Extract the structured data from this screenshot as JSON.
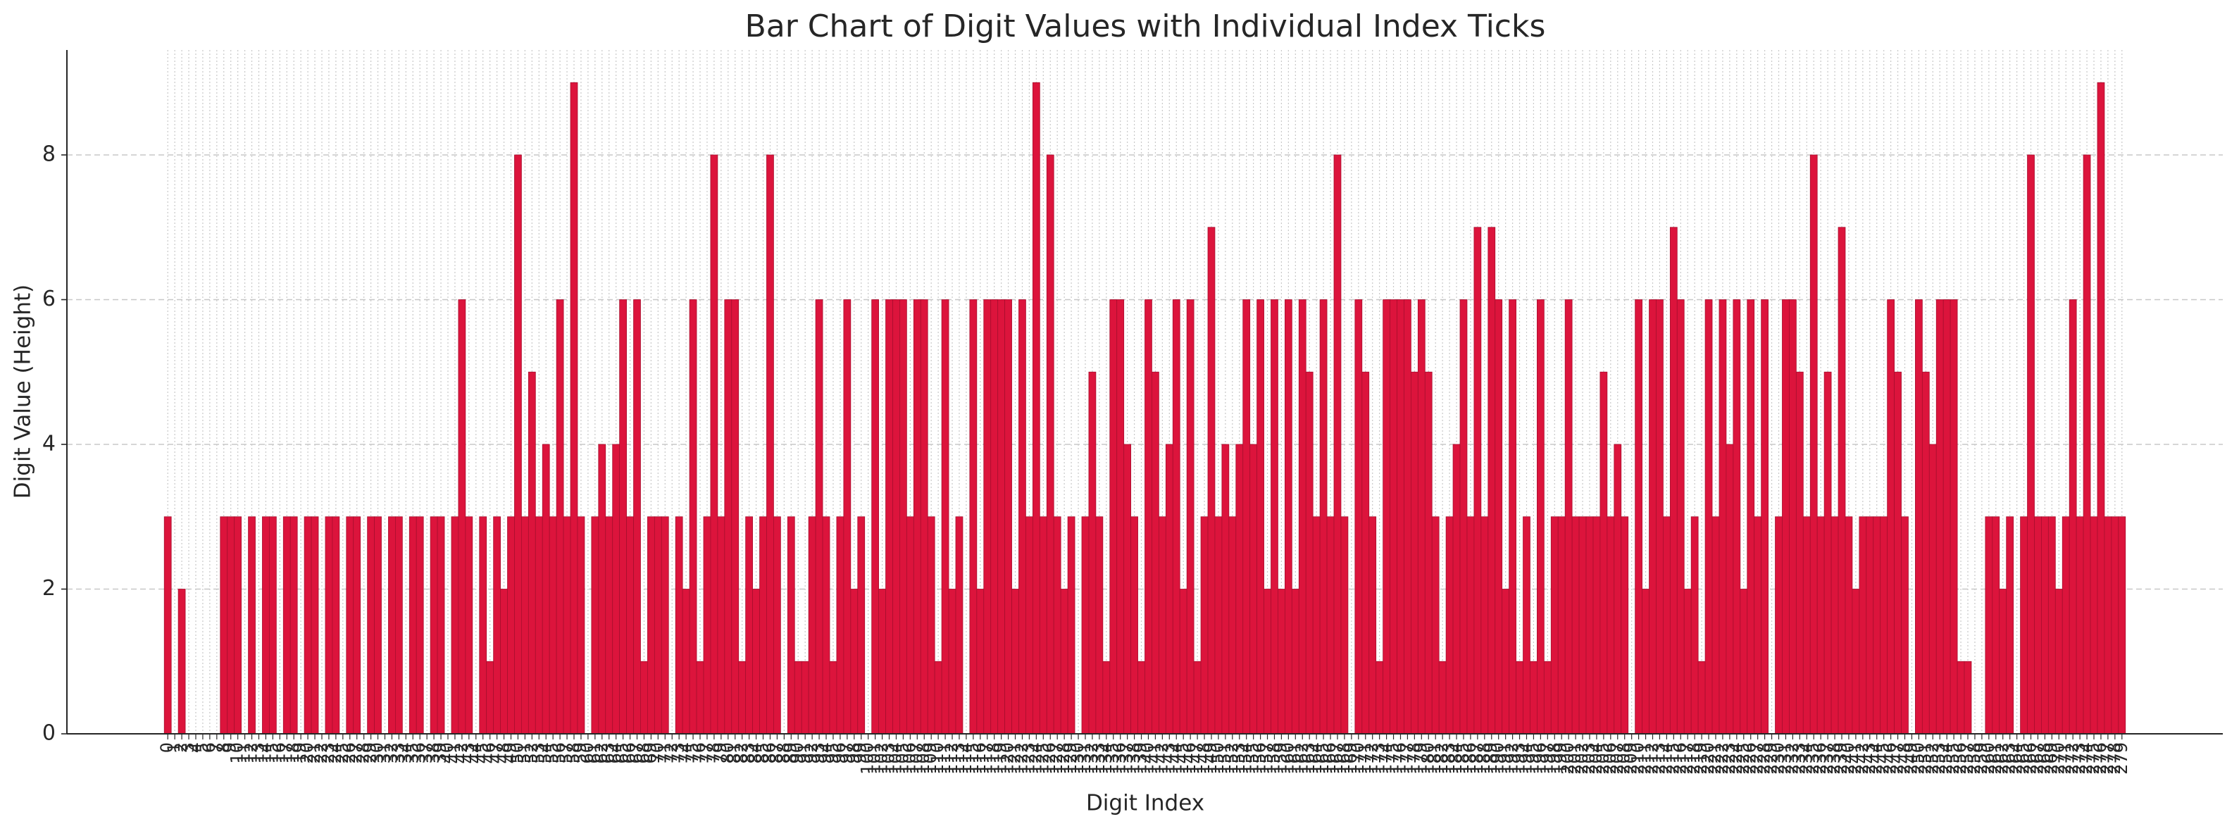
{
  "chart_data": {
    "type": "bar",
    "title": "Bar Chart of Digit Values with Individual Index Ticks",
    "xlabel": "Digit Index",
    "ylabel": "Digit Value (Height)",
    "color": "#dc143c",
    "grid": true,
    "xlim": [
      -14.4,
      293.4
    ],
    "ylim": [
      0,
      9.45
    ],
    "yticks": [
      0,
      2,
      4,
      6,
      8
    ],
    "x": [
      0,
      1,
      2,
      3,
      4,
      5,
      6,
      7,
      8,
      9,
      10,
      11,
      12,
      13,
      14,
      15,
      16,
      17,
      18,
      19,
      20,
      21,
      22,
      23,
      24,
      25,
      26,
      27,
      28,
      29,
      30,
      31,
      32,
      33,
      34,
      35,
      36,
      37,
      38,
      39,
      40,
      41,
      42,
      43,
      44,
      45,
      46,
      47,
      48,
      49,
      50,
      51,
      52,
      53,
      54,
      55,
      56,
      57,
      58,
      59,
      60,
      61,
      62,
      63,
      64,
      65,
      66,
      67,
      68,
      69,
      70,
      71,
      72,
      73,
      74,
      75,
      76,
      77,
      78,
      79,
      80,
      81,
      82,
      83,
      84,
      85,
      86,
      87,
      88,
      89,
      90,
      91,
      92,
      93,
      94,
      95,
      96,
      97,
      98,
      99,
      100,
      101,
      102,
      103,
      104,
      105,
      106,
      107,
      108,
      109,
      110,
      111,
      112,
      113,
      114,
      115,
      116,
      117,
      118,
      119,
      120,
      121,
      122,
      123,
      124,
      125,
      126,
      127,
      128,
      129,
      130,
      131,
      132,
      133,
      134,
      135,
      136,
      137,
      138,
      139,
      140,
      141,
      142,
      143,
      144,
      145,
      146,
      147,
      148,
      149,
      150,
      151,
      152,
      153,
      154,
      155,
      156,
      157,
      158,
      159,
      160,
      161,
      162,
      163,
      164,
      165,
      166,
      167,
      168,
      169,
      170,
      171,
      172,
      173,
      174,
      175,
      176,
      177,
      178,
      179,
      180,
      181,
      182,
      183,
      184,
      185,
      186,
      187,
      188,
      189,
      190,
      191,
      192,
      193,
      194,
      195,
      196,
      197,
      198,
      199,
      200,
      201,
      202,
      203,
      204,
      205,
      206,
      207,
      208,
      209,
      210,
      211,
      212,
      213,
      214,
      215,
      216,
      217,
      218,
      219,
      220,
      221,
      222,
      223,
      224,
      225,
      226,
      227,
      228,
      229,
      230,
      231,
      232,
      233,
      234,
      235,
      236,
      237,
      238,
      239,
      240,
      241,
      242,
      243,
      244,
      245,
      246,
      247,
      248,
      249,
      250,
      251,
      252,
      253,
      254,
      255,
      256,
      257,
      258,
      259,
      260,
      261,
      262,
      263,
      264,
      265,
      266,
      267,
      268,
      269,
      270,
      271,
      272,
      273,
      274,
      275,
      276,
      277,
      278,
      279
    ],
    "xticks": [
      0,
      1,
      2,
      3,
      4,
      5,
      6,
      7,
      8,
      9,
      10,
      11,
      12,
      13,
      14,
      15,
      16,
      17,
      18,
      19,
      20,
      21,
      22,
      23,
      24,
      25,
      26,
      27,
      28,
      29,
      30,
      31,
      32,
      33,
      34,
      35,
      36,
      37,
      38,
      39,
      40,
      41,
      42,
      43,
      44,
      45,
      46,
      47,
      48,
      49,
      50,
      51,
      52,
      53,
      54,
      55,
      56,
      57,
      58,
      59,
      60,
      61,
      62,
      63,
      64,
      65,
      66,
      67,
      68,
      69,
      70,
      71,
      72,
      73,
      74,
      75,
      76,
      77,
      78,
      79,
      80,
      81,
      82,
      83,
      84,
      85,
      86,
      87,
      88,
      89,
      90,
      91,
      92,
      93,
      94,
      95,
      96,
      97,
      98,
      99,
      100,
      101,
      102,
      103,
      104,
      105,
      106,
      107,
      108,
      109,
      110,
      111,
      112,
      113,
      114,
      115,
      116,
      117,
      118,
      119,
      120,
      121,
      122,
      123,
      124,
      125,
      126,
      127,
      128,
      129,
      130,
      131,
      132,
      133,
      134,
      135,
      136,
      137,
      138,
      139,
      140,
      141,
      142,
      143,
      144,
      145,
      146,
      147,
      148,
      149,
      150,
      151,
      152,
      153,
      154,
      155,
      156,
      157,
      158,
      159,
      160,
      161,
      162,
      163,
      164,
      165,
      166,
      167,
      168,
      169,
      170,
      171,
      172,
      173,
      174,
      175,
      176,
      177,
      178,
      179,
      180,
      181,
      182,
      183,
      184,
      185,
      186,
      187,
      188,
      189,
      190,
      191,
      192,
      193,
      194,
      195,
      196,
      197,
      198,
      199,
      200,
      201,
      202,
      203,
      204,
      205,
      206,
      207,
      208,
      209,
      210,
      211,
      212,
      213,
      214,
      215,
      216,
      217,
      218,
      219,
      220,
      221,
      222,
      223,
      224,
      225,
      226,
      227,
      228,
      229,
      230,
      231,
      232,
      233,
      234,
      235,
      236,
      237,
      238,
      239,
      240,
      241,
      242,
      243,
      244,
      245,
      246,
      247,
      248,
      249,
      250,
      251,
      252,
      253,
      254,
      255,
      256,
      257,
      258,
      259,
      260,
      261,
      262,
      263,
      264,
      265,
      266,
      267,
      268,
      269,
      270,
      271,
      272,
      273,
      274,
      275,
      276,
      277,
      278,
      279
    ],
    "values": [
      3,
      0,
      2,
      0,
      0,
      0,
      0,
      0,
      3,
      3,
      3,
      0,
      3,
      0,
      3,
      3,
      0,
      3,
      3,
      0,
      3,
      3,
      0,
      3,
      3,
      0,
      3,
      3,
      0,
      3,
      3,
      0,
      3,
      3,
      0,
      3,
      3,
      0,
      3,
      3,
      0,
      3,
      6,
      3,
      0,
      3,
      1,
      3,
      2,
      3,
      8,
      3,
      5,
      3,
      4,
      3,
      6,
      3,
      9,
      3,
      0,
      3,
      4,
      3,
      4,
      6,
      3,
      6,
      1,
      3,
      3,
      3,
      0,
      3,
      2,
      6,
      1,
      3,
      8,
      3,
      6,
      6,
      1,
      3,
      2,
      3,
      8,
      3,
      0,
      3,
      1,
      1,
      3,
      6,
      3,
      1,
      3,
      6,
      2,
      3,
      0,
      6,
      2,
      6,
      6,
      6,
      3,
      6,
      6,
      3,
      1,
      6,
      2,
      3,
      0,
      6,
      2,
      6,
      6,
      6,
      6,
      2,
      6,
      3,
      9,
      3,
      8,
      3,
      2,
      3,
      0,
      3,
      5,
      3,
      1,
      6,
      6,
      4,
      3,
      1,
      6,
      5,
      3,
      4,
      6,
      2,
      6,
      1,
      3,
      7,
      3,
      4,
      3,
      4,
      6,
      4,
      6,
      2,
      6,
      2,
      6,
      2,
      6,
      5,
      3,
      6,
      3,
      8,
      3,
      0,
      6,
      5,
      3,
      1,
      6,
      6,
      6,
      6,
      5,
      6,
      5,
      3,
      1,
      3,
      4,
      6,
      3,
      7,
      3,
      7,
      6,
      2,
      6,
      1,
      3,
      1,
      6,
      1,
      3,
      3,
      6,
      3,
      3,
      3,
      3,
      5,
      3,
      4,
      3,
      0,
      6,
      2,
      6,
      6,
      3,
      7,
      6,
      2,
      3,
      1,
      6,
      3,
      6,
      4,
      6,
      2,
      6,
      3,
      6,
      0,
      3,
      6,
      6,
      5,
      3,
      8,
      3,
      5,
      3,
      7,
      3,
      2,
      3,
      3,
      3,
      3,
      6,
      5,
      3,
      0,
      6,
      5,
      4,
      6,
      6,
      6,
      1,
      1,
      0,
      0,
      3,
      3,
      2,
      3,
      0,
      3,
      8,
      3,
      3,
      3,
      2,
      3,
      6,
      3,
      8,
      3,
      9,
      3,
      3,
      3
    ]
  }
}
